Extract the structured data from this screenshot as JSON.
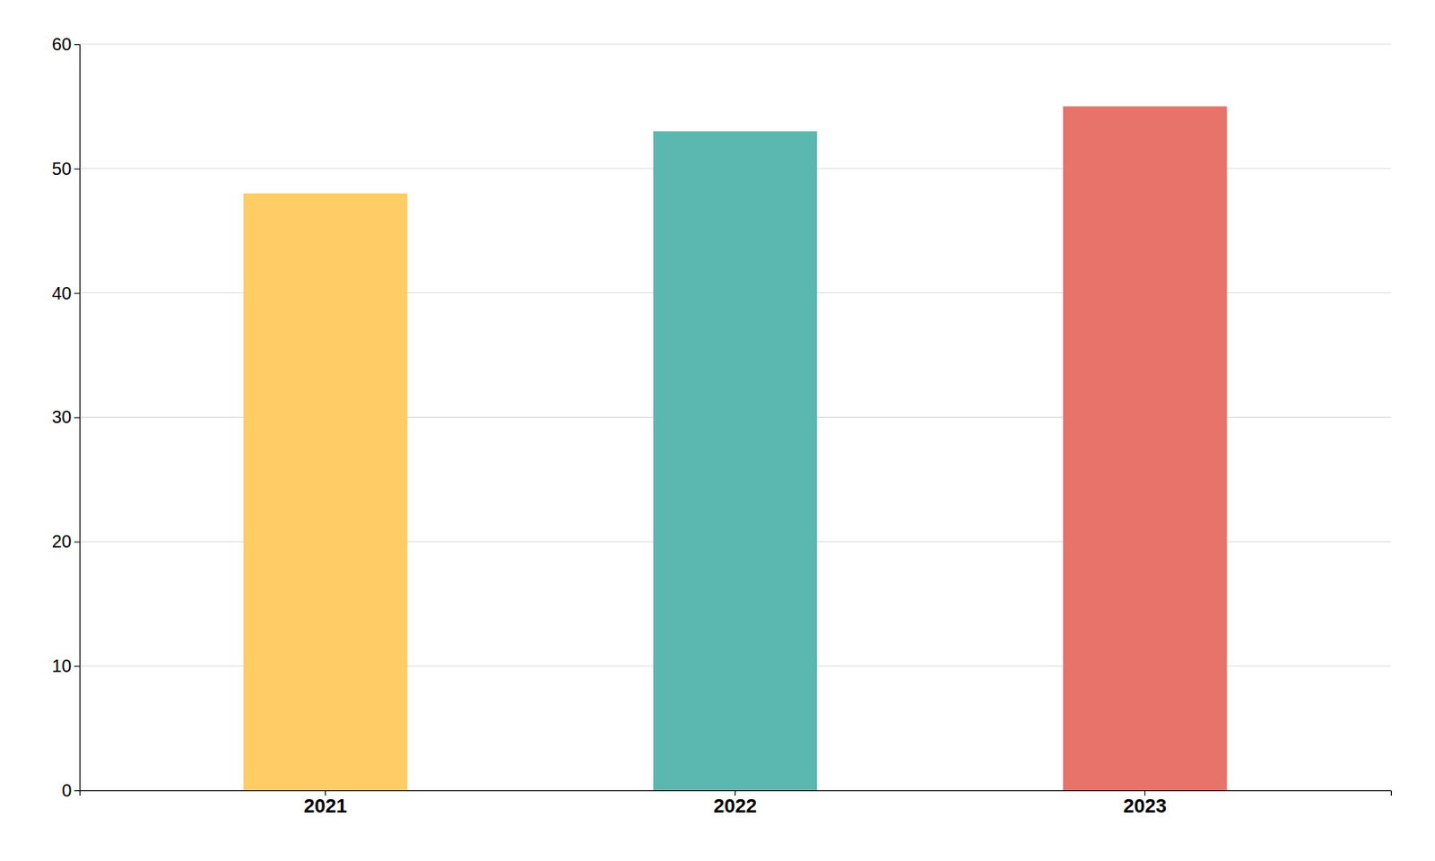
{
  "chart_data": {
    "type": "bar",
    "categories": [
      "2021",
      "2022",
      "2023"
    ],
    "values": [
      48,
      53,
      55
    ],
    "colors": [
      "#FFCC66",
      "#5BB8B0",
      "#E8736A"
    ],
    "ylim": [
      0,
      60
    ],
    "yticks": [
      0,
      10,
      20,
      30,
      40,
      50,
      60
    ],
    "grid": true
  }
}
